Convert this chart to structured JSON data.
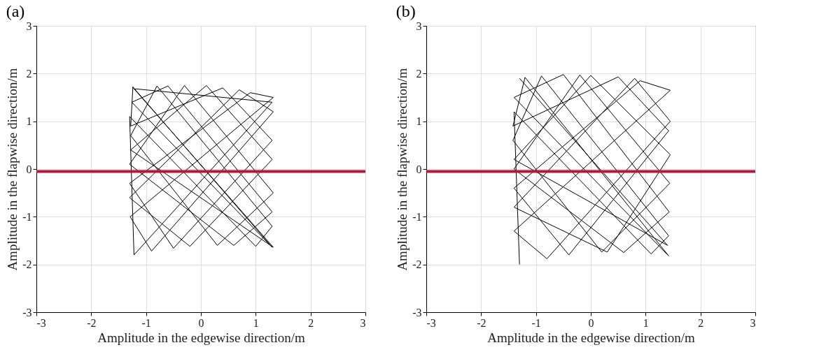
{
  "chart_data": [
    {
      "type": "line",
      "title": "(a)",
      "xlabel": "Amplitude in the edgewise direction/m",
      "ylabel": "Amplitude in the flapwise direction/m",
      "xlim": [
        -3,
        3
      ],
      "ylim": [
        -3,
        3
      ],
      "xticks": [
        -3,
        -2,
        -1,
        0,
        1,
        2,
        3
      ],
      "yticks": [
        -3,
        -2,
        -1,
        0,
        1,
        2,
        3
      ],
      "grid": true,
      "ref_lines": [
        {
          "axis": "y",
          "value": -0.05,
          "color": "#b0193a"
        }
      ],
      "series": [
        {
          "color": "#000000",
          "x": [
            -1.25,
            1.32,
            -1.28,
            0.1,
            1.3,
            -0.2,
            -1.3,
            0.7,
            1.32,
            -0.9,
            -1.29,
            1.32,
            0.9,
            -1.3,
            -0.5,
            1.3,
            0.4,
            -1.28,
            -1.24,
            1.3,
            -1.26,
            -0.6,
            1.3,
            0.6,
            -1.3,
            -0.3,
            1.32,
            0.3,
            -1.28,
            -0.8,
            1.3,
            1.0,
            -1.3,
            -1.22,
            1.3,
            -1.2
          ],
          "values": [
            1.72,
            -1.64,
            0.4,
            1.75,
            0.2,
            -1.62,
            -0.6,
            1.66,
            1.2,
            -1.72,
            -1.0,
            1.5,
            1.6,
            -0.3,
            -1.66,
            0.6,
            1.7,
            0.9,
            1.72,
            -1.64,
            1.4,
            1.74,
            -0.9,
            -1.6,
            0.1,
            1.75,
            -0.5,
            -1.6,
            0.7,
            1.74,
            -1.2,
            -1.62,
            1.1,
            -1.8,
            1.4,
            1.68
          ]
        }
      ]
    },
    {
      "type": "line",
      "title": "(b)",
      "xlabel": "Amplitude in the edgewise direction/m",
      "ylabel": "Amplitude in the flapwise direction/m",
      "xlim": [
        -3,
        3
      ],
      "ylim": [
        -3,
        3
      ],
      "xticks": [
        -3,
        -2,
        -1,
        0,
        1,
        2,
        3
      ],
      "yticks": [
        -3,
        -2,
        -1,
        0,
        1,
        2,
        3
      ],
      "grid": true,
      "ref_lines": [
        {
          "axis": "y",
          "value": -0.05,
          "color": "#b0193a"
        }
      ],
      "series": [
        {
          "color": "#000000",
          "x": [
            -1.3,
            1.4,
            -1.4,
            0.0,
            1.45,
            0.3,
            -1.4,
            0.8,
            1.45,
            -0.8,
            -1.4,
            1.45,
            0.9,
            -1.4,
            -0.4,
            1.42,
            0.5,
            -1.42,
            -1.2,
            1.42,
            -1.4,
            -0.5,
            1.43,
            0.6,
            -1.4,
            -0.2,
            1.44,
            0.2,
            -1.42,
            -0.9,
            1.42,
            1.1,
            -1.4,
            -1.3
          ],
          "values": [
            1.9,
            -1.6,
            0.2,
            1.96,
            0.3,
            -1.74,
            -0.8,
            1.9,
            1.0,
            -1.88,
            -1.3,
            1.65,
            1.85,
            -0.4,
            -1.8,
            0.8,
            1.93,
            0.9,
            1.92,
            -1.82,
            1.5,
            1.98,
            -0.9,
            -1.75,
            0.0,
            1.97,
            -0.3,
            -1.74,
            0.6,
            1.95,
            -1.4,
            -1.78,
            1.2,
            -2.0
          ]
        }
      ]
    }
  ]
}
